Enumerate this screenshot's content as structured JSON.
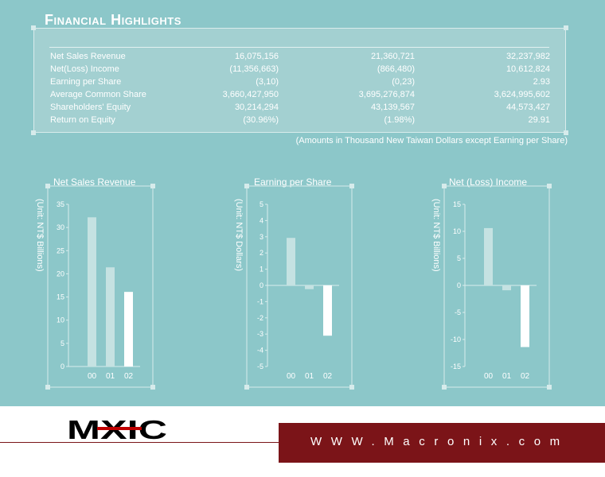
{
  "title": "Financial Highlights",
  "table": {
    "rows": [
      {
        "label": "Net Sales Revenue",
        "values": [
          "16,075,156",
          "21,360,721",
          "32,237,982"
        ]
      },
      {
        "label": "Net(Loss) Income",
        "values": [
          "(11,356,663)",
          "(866,480)",
          "10,612,824"
        ]
      },
      {
        "label": "Earning per Share",
        "values": [
          "(3,10)",
          "(0,23)",
          "2.93"
        ]
      },
      {
        "label": "Average Common Share",
        "values": [
          "3,660,427,950",
          "3,695,276,874",
          "3,624,995,602"
        ]
      },
      {
        "label": "Shareholders' Equity",
        "values": [
          "30,214,294",
          "43,139,567",
          "44,573,427"
        ]
      },
      {
        "label": "Return on Equity",
        "values": [
          "(30.96%)",
          "(1.98%)",
          "29.91"
        ]
      }
    ]
  },
  "footnote": "(Amounts in Thousand New Taiwan Dollars except Earning per Share)",
  "chart_data": [
    {
      "type": "bar",
      "title": "Net Sales Revenue",
      "ylabel": "(Unit: NT$ Billions)",
      "categories": [
        "00",
        "01",
        "02"
      ],
      "values": [
        32.2,
        21.4,
        16.1
      ],
      "ylim": [
        0,
        35
      ],
      "yticks": [
        0,
        5,
        10,
        15,
        20,
        25,
        30,
        35
      ],
      "grid": false
    },
    {
      "type": "bar",
      "title": "Earning per Share",
      "ylabel": "(Unit: NT$ Dollars)",
      "categories": [
        "00",
        "01",
        "02"
      ],
      "values": [
        2.93,
        -0.23,
        -3.1
      ],
      "ylim": [
        -5,
        5
      ],
      "yticks": [
        -5,
        -4,
        -3,
        -2,
        -1,
        0,
        1,
        2,
        3,
        4,
        5
      ],
      "grid": false
    },
    {
      "type": "bar",
      "title": "Net (Loss) Income",
      "ylabel": "(Unit: NT$ Billions)",
      "categories": [
        "00",
        "01",
        "02"
      ],
      "values": [
        10.6,
        -0.9,
        -11.4
      ],
      "ylim": [
        -15,
        15
      ],
      "yticks": [
        -15,
        -10,
        -5,
        0,
        5,
        10,
        15
      ],
      "grid": false
    }
  ],
  "colors": {
    "background": "#8cc7c9",
    "panel": "#a3d0d1",
    "bar_past": "#c5e2e2",
    "bar_latest": "#ffffff",
    "brand": "#7b1418"
  },
  "footer": {
    "logo_text": "MXIC",
    "url": "WWW.Macronix.com"
  }
}
